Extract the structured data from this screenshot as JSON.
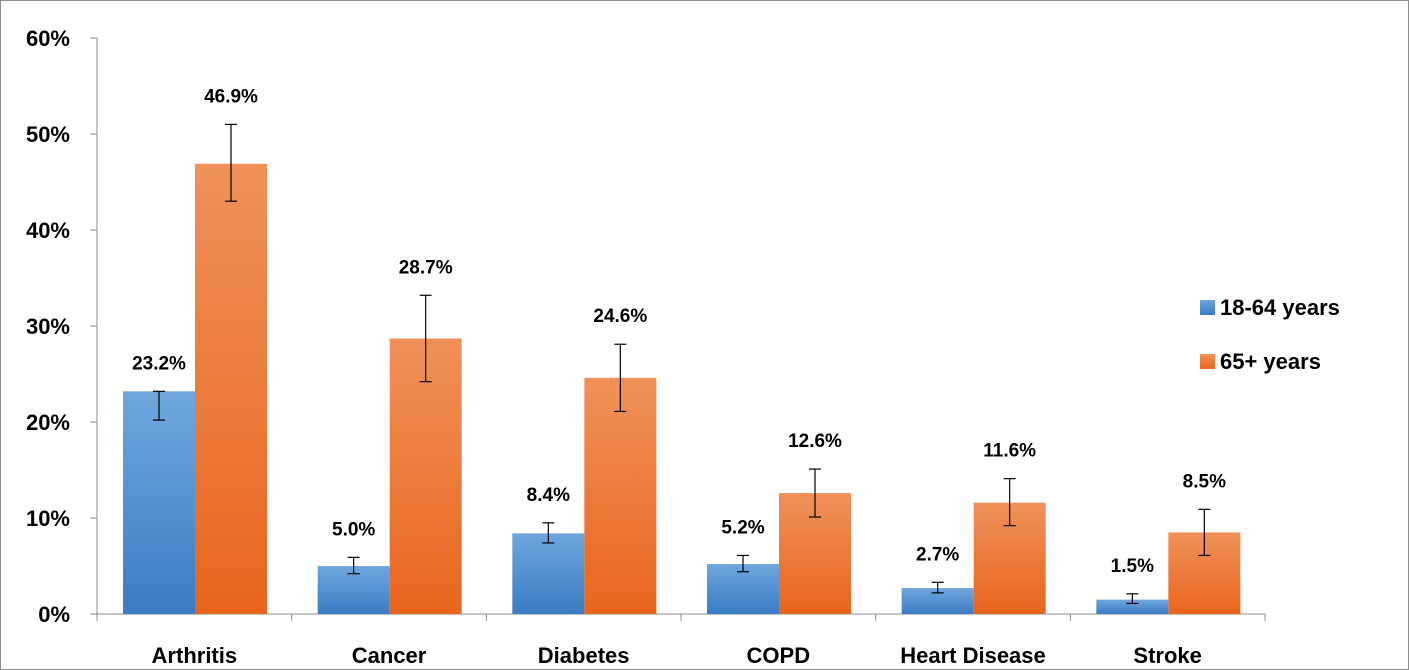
{
  "chart_data": {
    "type": "bar",
    "categories": [
      "Arthritis",
      "Cancer",
      "Diabetes",
      "COPD",
      "Heart Disease",
      "Stroke"
    ],
    "series": [
      {
        "name": "18-64 years",
        "values": [
          23.2,
          5.0,
          8.4,
          5.2,
          2.7,
          1.5
        ],
        "data_labels": [
          "23.2%",
          "5.0%",
          "8.4%",
          "5.2%",
          "2.7%",
          "1.5%"
        ],
        "error_low": [
          20.2,
          4.2,
          7.4,
          4.4,
          2.2,
          1.1
        ],
        "error_high": [
          23.2,
          5.9,
          9.5,
          6.1,
          3.3,
          2.1
        ],
        "color_top": "#6FA6DE",
        "color_bottom": "#3A7CC3"
      },
      {
        "name": "65+ years",
        "values": [
          46.9,
          28.7,
          24.6,
          12.6,
          11.6,
          8.5
        ],
        "data_labels": [
          "46.9%",
          "28.7%",
          "24.6%",
          "12.6%",
          "11.6%",
          "8.5%"
        ],
        "error_low": [
          43.0,
          24.2,
          21.1,
          10.1,
          9.2,
          6.1
        ],
        "error_high": [
          51.0,
          33.2,
          28.1,
          15.1,
          14.1,
          10.9
        ],
        "color_top": "#F0915A",
        "color_bottom": "#E8651C"
      }
    ],
    "y_ticks": [
      0,
      10,
      20,
      30,
      40,
      50,
      60
    ],
    "y_tick_labels": [
      "0%",
      "10%",
      "20%",
      "30%",
      "40%",
      "50%",
      "60%"
    ],
    "ylim": [
      0,
      60
    ],
    "title": "",
    "xlabel": "",
    "ylabel": "",
    "grid": false,
    "legend_position": "right"
  }
}
